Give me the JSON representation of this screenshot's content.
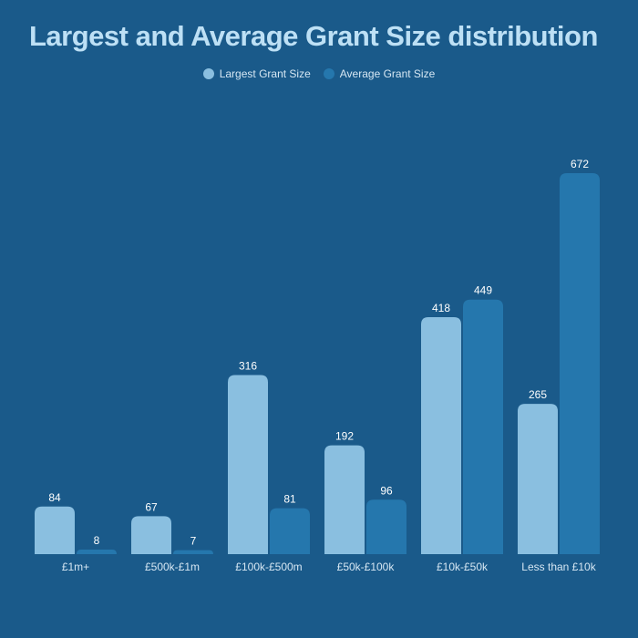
{
  "chart_data": {
    "type": "bar",
    "title": "Largest and Average Grant Size distribution",
    "categories": [
      "£1m+",
      "£500k-£1m",
      "£100k-£500m",
      "£50k-£100k",
      "£10k-£50k",
      "Less than £10k"
    ],
    "series": [
      {
        "name": "Largest Grant Size",
        "values": [
          84,
          67,
          316,
          192,
          418,
          265
        ],
        "color": "#8abfe0"
      },
      {
        "name": "Average Grant Size",
        "values": [
          8,
          7,
          81,
          96,
          449,
          672
        ],
        "color": "#2577ad"
      }
    ],
    "ylim": [
      0,
      672
    ],
    "grid": false,
    "legend_position": "top-center"
  },
  "colors": {
    "background": "#1a5a8a",
    "title": "#bde0f5",
    "text": "#d6e7f3"
  }
}
